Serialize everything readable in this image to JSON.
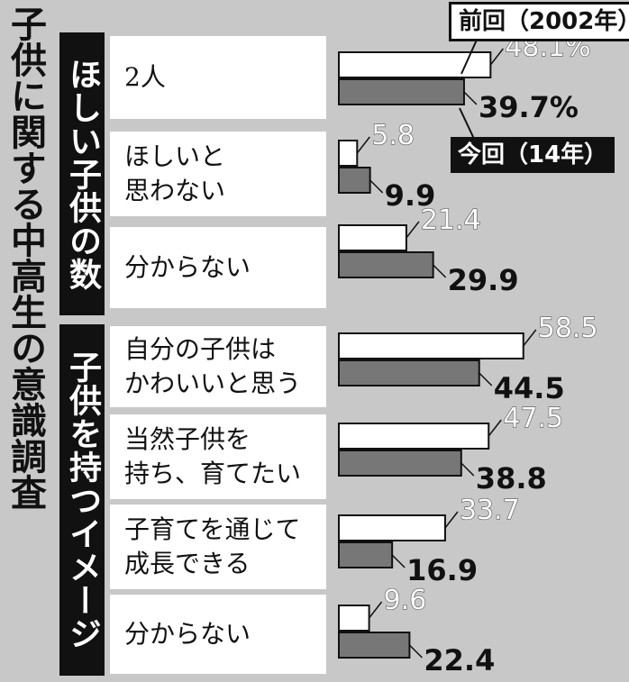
{
  "title": "子供に関する中高生の意識調査",
  "legend": {
    "previous": "前回（2002年）",
    "current": "今回（14年）"
  },
  "colors": {
    "background": "#c8c8c8",
    "previous_fill": "#ffffff",
    "current_fill": "#777777",
    "ink": "#111111"
  },
  "groups": [
    {
      "label": "ほしい子供の数",
      "items": [
        {
          "label": "2人",
          "previous_text": "48.1%",
          "current_text": "39.7%"
        },
        {
          "label": "ほしいと\n思わない",
          "previous_text": "5.8",
          "current_text": "9.9"
        },
        {
          "label": "分からない",
          "previous_text": "21.4",
          "current_text": "29.9"
        }
      ]
    },
    {
      "label": "子供を持つイメージ",
      "items": [
        {
          "label": "自分の子供は\nかわいいと思う",
          "previous_text": "58.5",
          "current_text": "44.5"
        },
        {
          "label": "当然子供を\n持ち、育てたい",
          "previous_text": "47.5",
          "current_text": "38.8"
        },
        {
          "label": "子育てを通じて\n成長できる",
          "previous_text": "33.7",
          "current_text": "16.9"
        },
        {
          "label": "分からない",
          "previous_text": "9.6",
          "current_text": "22.4"
        }
      ]
    }
  ],
  "chart_data": {
    "type": "bar",
    "orientation": "horizontal",
    "title": "子供に関する中高生の意識調査",
    "unit": "%",
    "categories": [
      "2人",
      "ほしいと思わない",
      "分からない",
      "自分の子供はかわいいと思う",
      "当然子供を持ち、育てたい",
      "子育てを通じて成長できる",
      "分からない"
    ],
    "series": [
      {
        "name": "前回（2002年）",
        "values": [
          48.1,
          5.8,
          21.4,
          58.5,
          47.5,
          33.7,
          9.6
        ]
      },
      {
        "name": "今回（14年）",
        "values": [
          39.7,
          9.9,
          29.9,
          44.5,
          38.8,
          16.9,
          22.4
        ]
      }
    ],
    "xlim": [
      0,
      100
    ],
    "grid": false
  }
}
